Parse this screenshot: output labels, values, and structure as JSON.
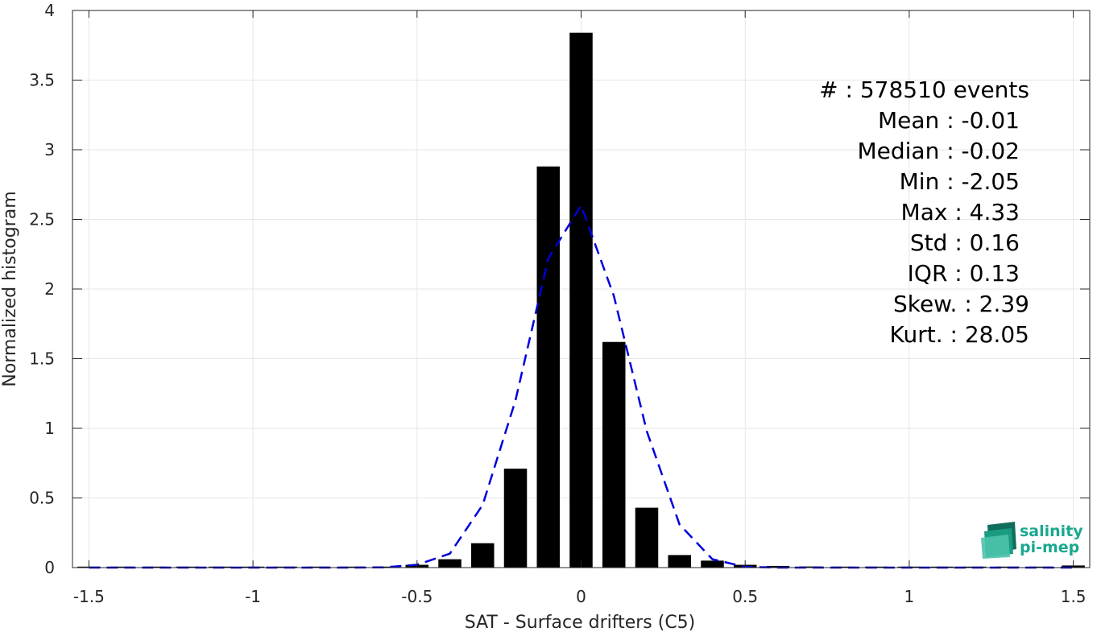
{
  "chart_data": {
    "type": "bar",
    "title": "",
    "xlabel": "SAT - Surface drifters (C5)",
    "ylabel": "Normalized histogram",
    "xlim": [
      -1.55,
      1.55
    ],
    "ylim": [
      0,
      4
    ],
    "grid": true,
    "xticks": [
      -1.5,
      -1,
      -0.5,
      0,
      0.5,
      1,
      1.5
    ],
    "xtick_labels": [
      "-1.5",
      "-1",
      "-0.5",
      "0",
      "0.5",
      "1",
      "1.5"
    ],
    "yticks": [
      0,
      0.5,
      1,
      1.5,
      2,
      2.5,
      3,
      3.5,
      4
    ],
    "ytick_labels": [
      "0",
      "0.5",
      "1",
      "1.5",
      "2",
      "2.5",
      "3",
      "3.5",
      "4"
    ],
    "bar_width": 0.07,
    "bars": {
      "x": [
        -1.5,
        -1.4,
        -1.3,
        -1.2,
        -1.1,
        -1.0,
        -0.9,
        -0.8,
        -0.7,
        -0.6,
        -0.5,
        -0.4,
        -0.3,
        -0.2,
        -0.1,
        0.0,
        0.1,
        0.2,
        0.3,
        0.4,
        0.5,
        0.6,
        0.7,
        0.8,
        0.9,
        1.0,
        1.1,
        1.2,
        1.3,
        1.4,
        1.5
      ],
      "values": [
        0.001,
        0.001,
        0.001,
        0.001,
        0.001,
        0.001,
        0.001,
        0.002,
        0.003,
        0.006,
        0.02,
        0.06,
        0.175,
        0.71,
        2.88,
        3.84,
        1.62,
        0.43,
        0.09,
        0.05,
        0.02,
        0.012,
        0.008,
        0.006,
        0.004,
        0.003,
        0.002,
        0.002,
        0.001,
        0.001,
        0.015
      ],
      "color": "#000000"
    },
    "fit_curve": {
      "style": "dashed",
      "color": "#0000dd",
      "x": [
        -1.5,
        -1.4,
        -1.3,
        -1.2,
        -1.1,
        -1.0,
        -0.9,
        -0.8,
        -0.7,
        -0.6,
        -0.5,
        -0.4,
        -0.3,
        -0.2,
        -0.1,
        0.0,
        0.1,
        0.2,
        0.3,
        0.4,
        0.5,
        0.6,
        0.7,
        0.8,
        0.9,
        1.0,
        1.1,
        1.2,
        1.3,
        1.4,
        1.5
      ],
      "y": [
        0,
        0,
        0,
        0,
        0,
        0,
        0,
        0,
        0,
        0.002,
        0.02,
        0.1,
        0.45,
        1.2,
        2.22,
        2.6,
        1.95,
        0.98,
        0.31,
        0.06,
        0.005,
        0,
        0,
        0,
        0,
        0,
        0,
        0,
        0,
        0,
        0
      ]
    },
    "annotations": [
      "#  : 578510 events",
      "Mean : -0.01",
      "Median : -0.02",
      "Min : -2.05",
      "Max : 4.33",
      "Std : 0.16",
      "IQR : 0.13",
      "Skew. : 2.39",
      "Kurt. : 28.05"
    ]
  },
  "logo": {
    "line1": "salinity",
    "line2": "pi-mep",
    "color": "#1aa88f"
  }
}
